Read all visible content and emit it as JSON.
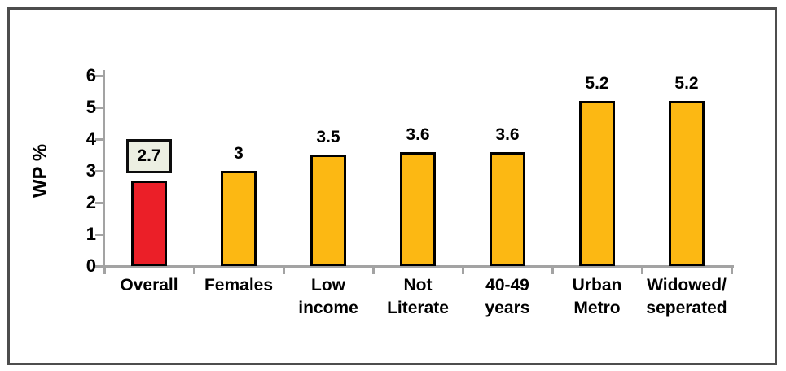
{
  "chart_data": {
    "type": "bar",
    "title": "",
    "ylabel": "WP %",
    "xlabel": "",
    "ylim": [
      0,
      6
    ],
    "yticks": [
      0,
      1,
      2,
      3,
      4,
      5,
      6
    ],
    "grid": false,
    "legend": false,
    "categories": [
      "Overall",
      "Females",
      "Low income",
      "Not Literate",
      "40-49 years",
      "Urban Metro",
      "Widowed/ seperated"
    ],
    "values": [
      2.7,
      3,
      3.5,
      3.6,
      3.6,
      5.2,
      5.2
    ],
    "bars": [
      {
        "category_lines": [
          "Overall"
        ],
        "value": 2.7,
        "label": "2.7",
        "color": "#EB1F28",
        "boxed_label": true
      },
      {
        "category_lines": [
          "Females"
        ],
        "value": 3,
        "label": "3",
        "color": "#FCB813",
        "boxed_label": false
      },
      {
        "category_lines": [
          "Low",
          "income"
        ],
        "value": 3.5,
        "label": "3.5",
        "color": "#FCB813",
        "boxed_label": false
      },
      {
        "category_lines": [
          "Not",
          "Literate"
        ],
        "value": 3.6,
        "label": "3.6",
        "color": "#FCB813",
        "boxed_label": false
      },
      {
        "category_lines": [
          "40-49",
          "years"
        ],
        "value": 3.6,
        "label": "3.6",
        "color": "#FCB813",
        "boxed_label": false
      },
      {
        "category_lines": [
          "Urban",
          "Metro"
        ],
        "value": 5.2,
        "label": "5.2",
        "color": "#FCB813",
        "boxed_label": false
      },
      {
        "category_lines": [
          "Widowed/",
          "seperated"
        ],
        "value": 5.2,
        "label": "5.2",
        "color": "#FCB813",
        "boxed_label": false
      }
    ],
    "colors": {
      "highlight_bar": "#EB1F28",
      "default_bar": "#FCB813",
      "bar_border": "#000000",
      "axis": "#A3A3A3",
      "text": "#000000",
      "label_box_bg": "#ECEFE2",
      "label_box_border": "#0D0D0D",
      "frame_border": "#4D4D4D"
    }
  }
}
